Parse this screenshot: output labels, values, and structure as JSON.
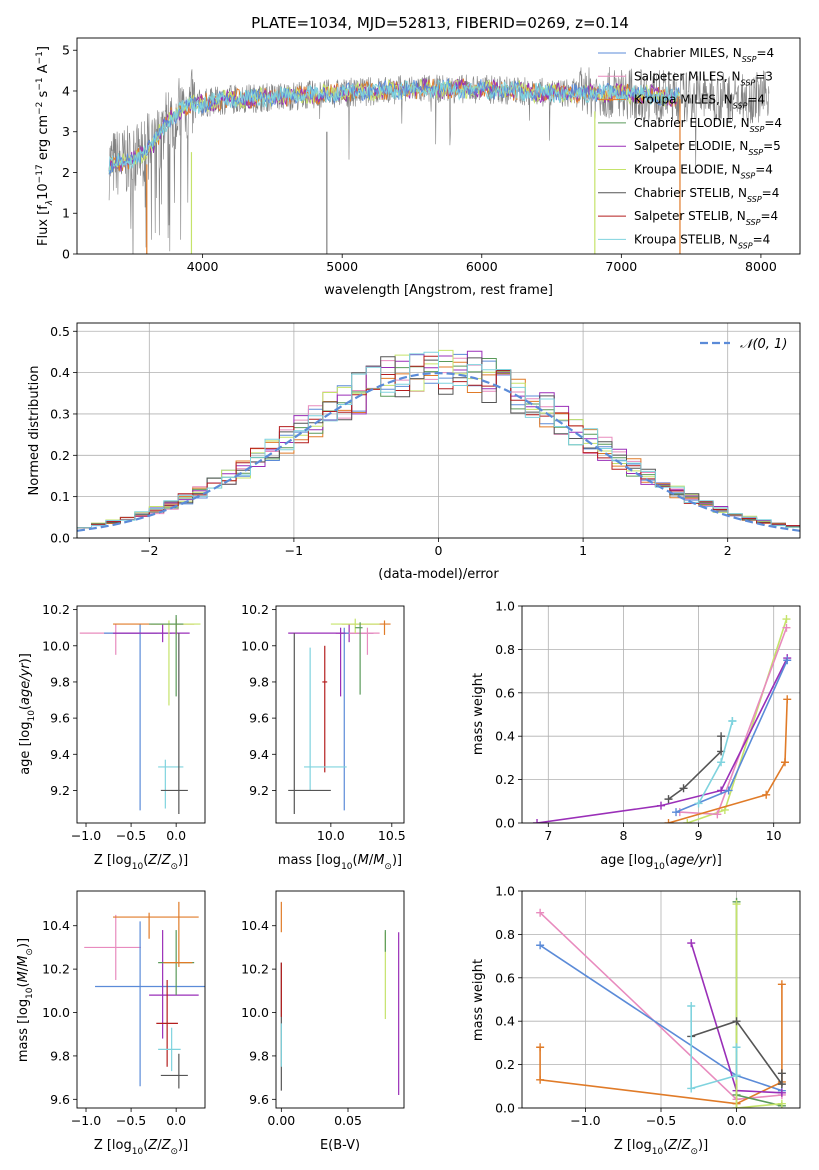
{
  "figure_title": "PLATE=1034, MJD=52813, FIBERID=0269, z=0.14",
  "colors": {
    "chabrier_miles": "#5b8bd8",
    "salpeter_miles": "#e88bbe",
    "kroupa_miles": "#e07b28",
    "chabrier_elodie": "#5a9a5a",
    "salpeter_elodie": "#9a2fb8",
    "kroupa_elodie": "#c5e36a",
    "chabrier_stelib": "#555555",
    "salpeter_stelib": "#b41e1e",
    "kroupa_stelib": "#7fd3de",
    "gaussian": "#5b8bd8",
    "data": "#808080",
    "grid": "#b0b0b0"
  },
  "chart_data": [
    {
      "id": "spectrum",
      "type": "line",
      "xlabel": "wavelength [Angstrom, rest frame]",
      "ylabel_parts": [
        "Flux [f",
        "λ",
        "10",
        "−17",
        " erg cm",
        "−2",
        " s",
        "−1",
        " A",
        "−1",
        "]"
      ],
      "xlim": [
        3100,
        8280
      ],
      "ylim": [
        0,
        5.3
      ],
      "xticks": [
        4000,
        5000,
        6000,
        7000,
        8000
      ],
      "yticks": [
        0,
        1,
        2,
        3,
        4,
        5
      ],
      "grid": false,
      "legend_position": "top-right",
      "legend": [
        {
          "main": "Chabrier MILES, N",
          "sub": "SSP",
          "tail": "=4",
          "color_key": "chabrier_miles"
        },
        {
          "main": "Salpeter MILES, N",
          "sub": "SSP",
          "tail": "=3",
          "color_key": "salpeter_miles"
        },
        {
          "main": "Kroupa MILES, N",
          "sub": "SSP",
          "tail": "=4",
          "color_key": "kroupa_miles"
        },
        {
          "main": "Chabrier ELODIE, N",
          "sub": "SSP",
          "tail": "=4",
          "color_key": "chabrier_elodie"
        },
        {
          "main": "Salpeter ELODIE, N",
          "sub": "SSP",
          "tail": "=5",
          "color_key": "salpeter_elodie"
        },
        {
          "main": "Kroupa ELODIE, N",
          "sub": "SSP",
          "tail": "=4",
          "color_key": "kroupa_elodie"
        },
        {
          "main": "Chabrier STELIB, N",
          "sub": "SSP",
          "tail": "=4",
          "color_key": "chabrier_stelib"
        },
        {
          "main": "Salpeter STELIB, N",
          "sub": "SSP",
          "tail": "=4",
          "color_key": "salpeter_stelib"
        },
        {
          "main": "Kroupa STELIB, N",
          "sub": "SSP",
          "tail": "=4",
          "color_key": "kroupa_stelib"
        }
      ],
      "continuum": [
        [
          3330,
          2.2
        ],
        [
          3500,
          2.3
        ],
        [
          3650,
          2.7
        ],
        [
          3750,
          3.3
        ],
        [
          3900,
          3.65
        ],
        [
          4000,
          3.7
        ],
        [
          4200,
          3.8
        ],
        [
          4500,
          3.85
        ],
        [
          5000,
          3.95
        ],
        [
          5500,
          4.05
        ],
        [
          6000,
          4.05
        ],
        [
          6500,
          3.95
        ],
        [
          7000,
          3.95
        ],
        [
          7400,
          3.85
        ]
      ],
      "vertical_drops": [
        {
          "x": 3600,
          "ymax": 2.2,
          "color_key": "kroupa_miles"
        },
        {
          "x": 3920,
          "ymax": 2.5,
          "color_key": "kroupa_elodie"
        },
        {
          "x": 4890,
          "ymax": 3.0,
          "color_key": "data"
        },
        {
          "x": 6810,
          "ymax": 3.5,
          "color_key": "kroupa_elodie"
        },
        {
          "x": 7420,
          "ymax": 3.8,
          "color_key": "kroupa_miles"
        }
      ]
    },
    {
      "id": "residuals",
      "type": "step-histogram",
      "xlabel": "(data-model)/error",
      "ylabel": "Normed distribution",
      "xlim": [
        -2.5,
        2.5
      ],
      "ylim": [
        0,
        0.52
      ],
      "xticks": [
        -2,
        -1,
        0,
        1,
        2
      ],
      "yticks": [
        0.0,
        0.1,
        0.2,
        0.3,
        0.4,
        0.5
      ],
      "grid": true,
      "legend_position": "top-right",
      "gaussian_label": "𝒩(0, 1)",
      "bin_width": 0.1,
      "bins_start": -2.5,
      "series_keys": [
        "chabrier_miles",
        "salpeter_miles",
        "kroupa_miles",
        "chabrier_elodie",
        "salpeter_elodie",
        "kroupa_elodie",
        "chabrier_stelib",
        "salpeter_stelib",
        "kroupa_stelib"
      ]
    },
    {
      "id": "age_vs_z",
      "type": "errorbar",
      "xlabel": "Z [log10(Z/Z⊙)]",
      "ylabel": "age  [log10(age/yr)]",
      "xlim": [
        -1.1,
        0.32
      ],
      "ylim": [
        9.02,
        10.22
      ],
      "xticks": [
        -1.0,
        -0.5,
        0.0
      ],
      "yticks": [
        9.2,
        9.4,
        9.6,
        9.8,
        10.0,
        10.2
      ],
      "points": [
        {
          "x": -0.67,
          "y": 10.07,
          "xerr": [
            0.4,
            0.46
          ],
          "yerr": [
            0.12,
            0.05
          ],
          "color_key": "salpeter_miles"
        },
        {
          "x": -0.4,
          "y": 10.07,
          "xerr": [
            0.4,
            0.35
          ],
          "yerr": [
            0.98,
            0.05
          ],
          "color_key": "chabrier_miles"
        },
        {
          "x": -0.15,
          "y": 10.07,
          "xerr": [
            0.55,
            0.3
          ],
          "yerr": [
            0.05,
            0.05
          ],
          "color_key": "salpeter_elodie"
        },
        {
          "x": 0.0,
          "y": 10.12,
          "xerr": [
            0.7,
            0.2
          ],
          "yerr": [
            0.06,
            0.03
          ],
          "color_key": "kroupa_miles"
        },
        {
          "x": -0.08,
          "y": 10.12,
          "xerr": [
            0.2,
            0.35
          ],
          "yerr": [
            0.45,
            0.02
          ],
          "color_key": "kroupa_elodie"
        },
        {
          "x": 0.0,
          "y": 10.12,
          "xerr": [
            0.3,
            0.08
          ],
          "yerr": [
            0.4,
            0.05
          ],
          "color_key": "chabrier_elodie"
        },
        {
          "x": -0.12,
          "y": 9.33,
          "xerr": [
            0.08,
            0.2
          ],
          "yerr": [
            0.23,
            0.04
          ],
          "color_key": "kroupa_stelib"
        },
        {
          "x": 0.03,
          "y": 9.2,
          "xerr": [
            0.2,
            0.1
          ],
          "yerr": [
            0.13,
            0.87
          ],
          "color_key": "chabrier_stelib"
        }
      ]
    },
    {
      "id": "age_vs_mass",
      "type": "errorbar",
      "xlabel": "mass [log10(M/M⊙)]",
      "ylabel": "",
      "xlim": [
        9.55,
        10.6
      ],
      "ylim": [
        9.02,
        10.22
      ],
      "xticks": [
        10.0,
        10.5
      ],
      "yticks": [
        9.2,
        9.4,
        9.6,
        9.8,
        10.0,
        10.2
      ],
      "points": [
        {
          "x": 10.15,
          "y": 10.07,
          "xerr": [
            0.5,
            0.2
          ],
          "yerr": [
            0.05,
            0.05
          ],
          "color_key": "salpeter_elodie"
        },
        {
          "x": 10.3,
          "y": 10.07,
          "xerr": [
            0.25,
            0.1
          ],
          "yerr": [
            0.12,
            0.03
          ],
          "color_key": "salpeter_miles"
        },
        {
          "x": 10.44,
          "y": 10.12,
          "xerr": [
            0.35,
            0.05
          ],
          "yerr": [
            0.06,
            0.02
          ],
          "color_key": "kroupa_miles"
        },
        {
          "x": 10.2,
          "y": 10.12,
          "xerr": [
            0.2,
            0.2
          ],
          "yerr": [
            0.05,
            0.03
          ],
          "color_key": "kroupa_elodie"
        },
        {
          "x": 10.24,
          "y": 10.1,
          "xerr": [
            0.04,
            0.02
          ],
          "yerr": [
            0.37,
            0.03
          ],
          "color_key": "chabrier_elodie"
        },
        {
          "x": 10.11,
          "y": 10.07,
          "xerr": [
            0.04,
            0.04
          ],
          "yerr": [
            0.98,
            0.03
          ],
          "color_key": "chabrier_miles"
        },
        {
          "x": 10.08,
          "y": 10.07,
          "xerr": [
            0.04,
            0.04
          ],
          "yerr": [
            0.35,
            0.03
          ],
          "color_key": "salpeter_elodie"
        },
        {
          "x": 9.95,
          "y": 9.8,
          "xerr": [
            0.02,
            0.02
          ],
          "yerr": [
            0.5,
            0.2
          ],
          "color_key": "salpeter_stelib"
        },
        {
          "x": 9.83,
          "y": 9.33,
          "xerr": [
            0.05,
            0.3
          ],
          "yerr": [
            0.13,
            0.66
          ],
          "color_key": "kroupa_stelib"
        },
        {
          "x": 9.7,
          "y": 9.2,
          "xerr": [
            0.05,
            0.3
          ],
          "yerr": [
            0.13,
            0.87
          ],
          "color_key": "chabrier_stelib"
        }
      ]
    },
    {
      "id": "mass_weight_vs_age",
      "type": "line",
      "xlabel": "age  [log10(age/yr)]",
      "ylabel": "mass weight",
      "xlim": [
        6.65,
        10.35
      ],
      "ylim": [
        0,
        1.0
      ],
      "xticks": [
        7,
        8,
        9,
        10
      ],
      "yticks": [
        0.0,
        0.2,
        0.4,
        0.6,
        0.8,
        1.0
      ],
      "grid": true,
      "series": [
        {
          "color_key": "kroupa_elodie",
          "x": [
            8.85,
            9.35,
            10.17
          ],
          "y": [
            0.0,
            0.06,
            0.94
          ]
        },
        {
          "color_key": "salpeter_miles",
          "x": [
            8.75,
            9.25,
            10.17
          ],
          "y": [
            0.05,
            0.04,
            0.9
          ]
        },
        {
          "color_key": "salpeter_elodie",
          "x": [
            6.85,
            8.5,
            9.3,
            10.18
          ],
          "y": [
            0.0,
            0.08,
            0.15,
            0.76
          ]
        },
        {
          "color_key": "chabrier_miles",
          "x": [
            8.7,
            9.4,
            10.18
          ],
          "y": [
            0.05,
            0.15,
            0.75
          ]
        },
        {
          "color_key": "kroupa_miles",
          "x": [
            8.6,
            9.9,
            10.15,
            10.18
          ],
          "y": [
            0.0,
            0.13,
            0.28,
            0.57
          ]
        },
        {
          "color_key": "chabrier_stelib",
          "x": [
            8.6,
            8.8,
            9.3,
            9.3
          ],
          "y": [
            0.11,
            0.16,
            0.33,
            0.4
          ]
        },
        {
          "color_key": "kroupa_stelib",
          "x": [
            9.0,
            9.3,
            9.45,
            9.45
          ],
          "y": [
            0.09,
            0.28,
            0.47,
            0.47
          ]
        }
      ]
    },
    {
      "id": "mass_vs_z",
      "type": "errorbar",
      "xlabel": "Z [log10(Z/Z⊙)]",
      "ylabel": "mass [log10(M/M⊙)]",
      "xlim": [
        -1.1,
        0.32
      ],
      "ylim": [
        9.56,
        10.56
      ],
      "xticks": [
        -1.0,
        -0.5,
        0.0
      ],
      "yticks": [
        9.6,
        9.8,
        10.0,
        10.2,
        10.4
      ],
      "points": [
        {
          "x": -0.67,
          "y": 10.3,
          "xerr": [
            0.35,
            0.28
          ],
          "yerr": [
            0.15,
            0.15
          ],
          "color_key": "salpeter_miles"
        },
        {
          "x": -0.3,
          "y": 10.44,
          "xerr": [
            0.4,
            0.55
          ],
          "yerr": [
            0.1,
            0.02
          ],
          "color_key": "kroupa_miles"
        },
        {
          "x": -0.4,
          "y": 10.12,
          "xerr": [
            0.5,
            0.72
          ],
          "yerr": [
            0.46,
            0.3
          ],
          "color_key": "chabrier_miles"
        },
        {
          "x": -0.15,
          "y": 10.08,
          "xerr": [
            0.15,
            0.4
          ],
          "yerr": [
            0.2,
            0.3
          ],
          "color_key": "salpeter_elodie"
        },
        {
          "x": 0.0,
          "y": 10.23,
          "xerr": [
            0.2,
            0.2
          ],
          "yerr": [
            0.15,
            0.15
          ],
          "color_key": "chabrier_elodie"
        },
        {
          "x": 0.03,
          "y": 10.23,
          "xerr": [
            0.17,
            0.15
          ],
          "yerr": [
            0.02,
            0.28
          ],
          "color_key": "kroupa_miles"
        },
        {
          "x": -0.1,
          "y": 9.95,
          "xerr": [
            0.12,
            0.12
          ],
          "yerr": [
            0.2,
            0.2
          ],
          "color_key": "salpeter_stelib"
        },
        {
          "x": -0.05,
          "y": 9.83,
          "xerr": [
            0.15,
            0.1
          ],
          "yerr": [
            0.1,
            0.1
          ],
          "color_key": "kroupa_stelib"
        },
        {
          "x": 0.03,
          "y": 9.71,
          "xerr": [
            0.2,
            0.1
          ],
          "yerr": [
            0.06,
            0.1
          ],
          "color_key": "chabrier_stelib"
        }
      ]
    },
    {
      "id": "mass_vs_ebv",
      "type": "errorbar",
      "xlabel": "E(B-V)",
      "ylabel": "",
      "xlim": [
        -0.004,
        0.092
      ],
      "ylim": [
        9.56,
        10.56
      ],
      "xticks": [
        0.0,
        0.05
      ],
      "yticks": [
        9.6,
        9.8,
        10.0,
        10.2,
        10.4
      ],
      "points": [
        {
          "x": 0.0,
          "y": 10.44,
          "xerr": [
            0,
            0
          ],
          "yerr": [
            0.07,
            0.07
          ],
          "color_key": "kroupa_miles"
        },
        {
          "x": 0.0,
          "y": 10.1,
          "xerr": [
            0,
            0
          ],
          "yerr": [
            0.46,
            0.13
          ],
          "color_key": "chabrier_stelib"
        },
        {
          "x": 0.0,
          "y": 10.1,
          "xerr": [
            0,
            0
          ],
          "yerr": [
            0.12,
            0.13
          ],
          "color_key": "salpeter_stelib"
        },
        {
          "x": 0.0,
          "y": 9.85,
          "xerr": [
            0,
            0
          ],
          "yerr": [
            0.1,
            0.1
          ],
          "color_key": "kroupa_stelib"
        },
        {
          "x": 0.078,
          "y": 10.17,
          "xerr": [
            0,
            0
          ],
          "yerr": [
            0.2,
            0.2
          ],
          "color_key": "kroupa_elodie"
        },
        {
          "x": 0.078,
          "y": 10.3,
          "xerr": [
            0,
            0
          ],
          "yerr": [
            0.02,
            0.08
          ],
          "color_key": "chabrier_elodie"
        },
        {
          "x": 0.088,
          "y": 10.0,
          "xerr": [
            0,
            0
          ],
          "yerr": [
            0.38,
            0.37
          ],
          "color_key": "salpeter_elodie"
        }
      ]
    },
    {
      "id": "mass_weight_vs_z",
      "type": "line",
      "xlabel": "Z [log10(Z/Z⊙)]",
      "ylabel": "mass weight",
      "xlim": [
        -1.42,
        0.42
      ],
      "ylim": [
        0,
        1.0
      ],
      "xticks": [
        -1.0,
        -0.5,
        0.0
      ],
      "yticks": [
        0.0,
        0.2,
        0.4,
        0.6,
        0.8,
        1.0
      ],
      "grid": true,
      "series": [
        {
          "color_key": "salpeter_miles",
          "x": [
            -1.3,
            0.0,
            0.3
          ],
          "y": [
            0.9,
            0.04,
            0.06
          ]
        },
        {
          "color_key": "chabrier_miles",
          "x": [
            -1.3,
            0.0,
            0.3
          ],
          "y": [
            0.75,
            0.15,
            0.08
          ]
        },
        {
          "color_key": "kroupa_miles",
          "x": [
            -1.3,
            -1.3,
            0.0,
            0.3,
            0.3
          ],
          "y": [
            0.28,
            0.13,
            0.02,
            0.12,
            0.57
          ]
        },
        {
          "color_key": "salpeter_elodie",
          "x": [
            -0.3,
            0.0,
            0.3
          ],
          "y": [
            0.76,
            0.08,
            0.07
          ]
        },
        {
          "color_key": "chabrier_elodie",
          "x": [
            0.0,
            0.0,
            0.3
          ],
          "y": [
            0.95,
            0.06,
            0.01
          ]
        },
        {
          "color_key": "kroupa_elodie",
          "x": [
            0.0,
            0.0,
            0.3
          ],
          "y": [
            0.94,
            0.0,
            0.02
          ]
        },
        {
          "color_key": "chabrier_stelib",
          "x": [
            -0.3,
            0.0,
            0.3,
            0.3
          ],
          "y": [
            0.33,
            0.4,
            0.11,
            0.16
          ]
        },
        {
          "color_key": "kroupa_stelib",
          "x": [
            -0.3,
            -0.3,
            0.0,
            0.0
          ],
          "y": [
            0.47,
            0.09,
            0.15,
            0.28
          ]
        }
      ]
    }
  ]
}
